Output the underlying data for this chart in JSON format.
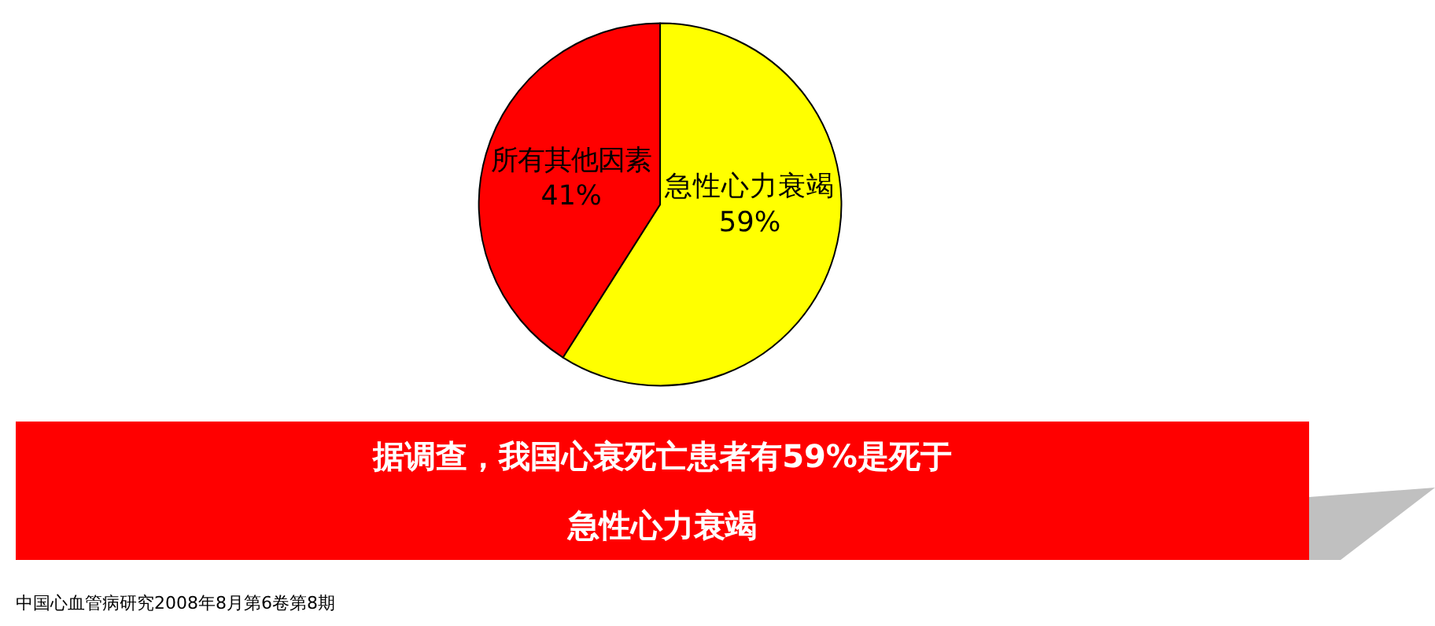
{
  "chart_data": {
    "type": "pie",
    "categories": [
      "急性心力衰竭",
      "所有其他因素"
    ],
    "values": [
      59,
      41
    ],
    "value_labels": [
      "59%",
      "41%"
    ],
    "colors": [
      "#ffff00",
      "#ff0000"
    ],
    "legend": false,
    "annotations": [
      "据调查，我国心衰死亡患者有59%是死于",
      "急性心力衰竭",
      "中国心血管病研究2008年8月第6卷第8期"
    ]
  }
}
